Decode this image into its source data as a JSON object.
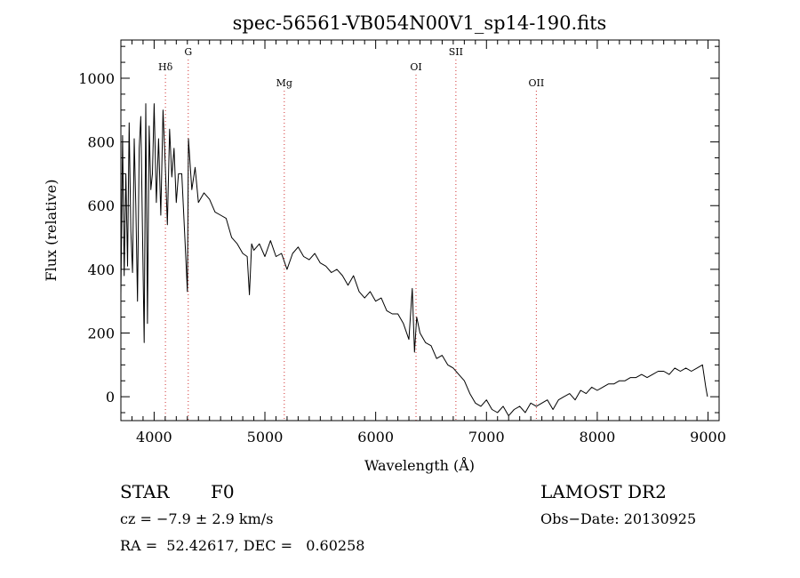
{
  "chart_data": {
    "type": "line",
    "title": "spec-56561-VB054N00V1_sp14-190.fits",
    "xlabel": "Wavelength (Å)",
    "ylabel": "Flux (relative)",
    "xlim": [
      3700,
      9100
    ],
    "ylim": [
      -75,
      1120
    ],
    "x_ticks": [
      4000,
      5000,
      6000,
      7000,
      8000,
      9000
    ],
    "y_ticks": [
      0,
      200,
      400,
      600,
      800,
      1000
    ],
    "grid": false,
    "series": [
      {
        "x": [
          3700,
          3715,
          3730,
          3745,
          3760,
          3775,
          3790,
          3805,
          3820,
          3835,
          3850,
          3865,
          3880,
          3895,
          3910,
          3925,
          3940,
          3955,
          3970,
          3985,
          4000,
          4020,
          4040,
          4060,
          4080,
          4100,
          4120,
          4140,
          4160,
          4180,
          4200,
          4220,
          4250,
          4280,
          4300,
          4310,
          4340,
          4370,
          4400,
          4450,
          4500,
          4550,
          4600,
          4650,
          4700,
          4750,
          4800,
          4840,
          4860,
          4880,
          4900,
          4950,
          5000,
          5050,
          5100,
          5150,
          5200,
          5250,
          5300,
          5350,
          5400,
          5450,
          5500,
          5550,
          5600,
          5650,
          5700,
          5750,
          5800,
          5850,
          5900,
          5950,
          6000,
          6050,
          6100,
          6150,
          6200,
          6250,
          6300,
          6330,
          6350,
          6370,
          6400,
          6450,
          6500,
          6550,
          6600,
          6650,
          6700,
          6750,
          6800,
          6850,
          6900,
          6950,
          7000,
          7050,
          7100,
          7150,
          7200,
          7250,
          7300,
          7350,
          7400,
          7450,
          7500,
          7550,
          7600,
          7650,
          7700,
          7750,
          7800,
          7850,
          7900,
          7950,
          8000,
          8050,
          8100,
          8150,
          8200,
          8250,
          8300,
          8350,
          8400,
          8450,
          8500,
          8550,
          8600,
          8650,
          8700,
          8750,
          8800,
          8850,
          8900,
          8950,
          8980,
          8995
        ],
        "y": [
          320,
          820,
          380,
          700,
          410,
          860,
          520,
          390,
          810,
          600,
          300,
          780,
          880,
          520,
          170,
          920,
          230,
          850,
          650,
          700,
          920,
          610,
          810,
          570,
          900,
          730,
          540,
          840,
          690,
          780,
          610,
          700,
          700,
          480,
          330,
          810,
          650,
          720,
          610,
          640,
          620,
          580,
          570,
          560,
          500,
          480,
          450,
          440,
          320,
          480,
          460,
          480,
          440,
          490,
          440,
          450,
          400,
          450,
          470,
          440,
          430,
          450,
          420,
          410,
          390,
          400,
          380,
          350,
          380,
          330,
          310,
          330,
          300,
          310,
          270,
          260,
          260,
          230,
          180,
          340,
          140,
          250,
          200,
          170,
          160,
          120,
          130,
          100,
          90,
          70,
          50,
          10,
          -20,
          -30,
          -10,
          -40,
          -50,
          -30,
          -60,
          -40,
          -30,
          -50,
          -20,
          -30,
          -20,
          -10,
          -40,
          -10,
          0,
          10,
          -10,
          20,
          10,
          30,
          20,
          30,
          40,
          40,
          50,
          50,
          60,
          60,
          70,
          60,
          70,
          80,
          80,
          70,
          90,
          80,
          90,
          80,
          90,
          100,
          30,
          0
        ]
      }
    ],
    "annotations": [
      {
        "label": "Hδ",
        "x": 4102,
        "row": "low"
      },
      {
        "label": "G",
        "x": 4308,
        "row": "high"
      },
      {
        "label": "Mg",
        "x": 5175,
        "row": "lower"
      },
      {
        "label": "OI",
        "x": 6364,
        "row": "low"
      },
      {
        "label": "SII",
        "x": 6724,
        "row": "high"
      },
      {
        "label": "OII",
        "x": 7450,
        "row": "lower"
      }
    ]
  },
  "info": {
    "class_label": "STAR",
    "subclass": "F0",
    "survey": "LAMOST DR2",
    "cz": "cz = −7.9 ± 2.9 km/s",
    "obs_date": "Obs−Date: 20130925",
    "coords": "RA =  52.42617, DEC =   0.60258"
  }
}
